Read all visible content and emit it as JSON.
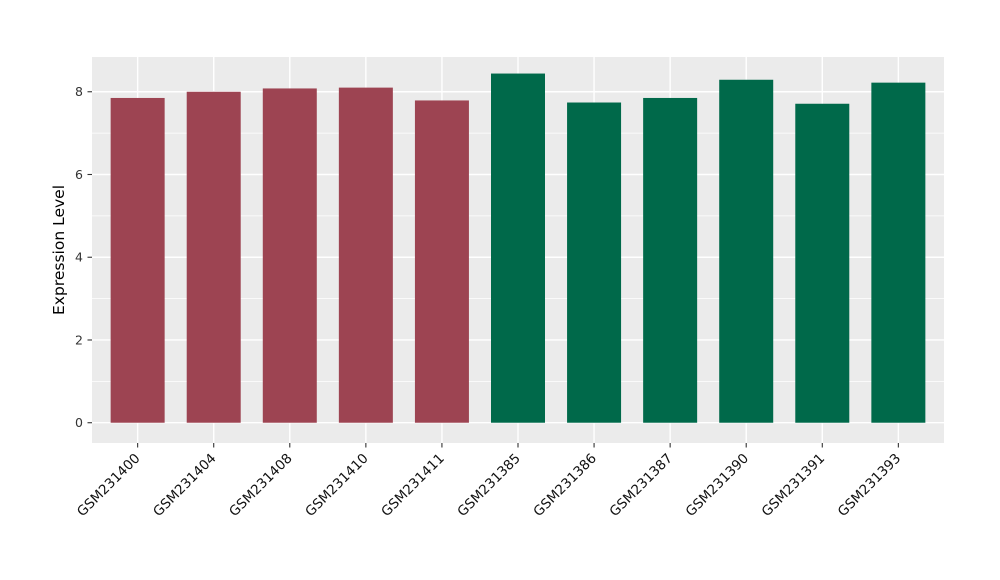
{
  "chart_data": {
    "type": "bar",
    "title": "",
    "xlabel": "",
    "ylabel": "Expression Level",
    "categories": [
      "GSM231400",
      "GSM231404",
      "GSM231408",
      "GSM231410",
      "GSM231411",
      "GSM231385",
      "GSM231386",
      "GSM231387",
      "GSM231390",
      "GSM231391",
      "GSM231393"
    ],
    "values": [
      7.85,
      8.0,
      8.08,
      8.1,
      7.79,
      8.44,
      7.74,
      7.85,
      8.29,
      7.71,
      8.22
    ],
    "bar_colors": [
      "#9d4452",
      "#9d4452",
      "#9d4452",
      "#9d4452",
      "#9d4452",
      "#00694a",
      "#00694a",
      "#00694a",
      "#00694a",
      "#00694a",
      "#00694a"
    ],
    "group_colors": {
      "maroon_group": "#9d4452",
      "green_group": "#00694a"
    },
    "yticks": [
      0,
      2,
      4,
      6,
      8
    ],
    "minor_yticks": [
      1,
      3,
      5,
      7
    ],
    "ylim": [
      -0.49,
      8.84
    ],
    "xtick_rotation_deg": 45,
    "panel_background": "#ebebeb",
    "grid_color": "#ffffff",
    "tick_mark_color": "#333333",
    "grid": "on",
    "legend": "none"
  }
}
